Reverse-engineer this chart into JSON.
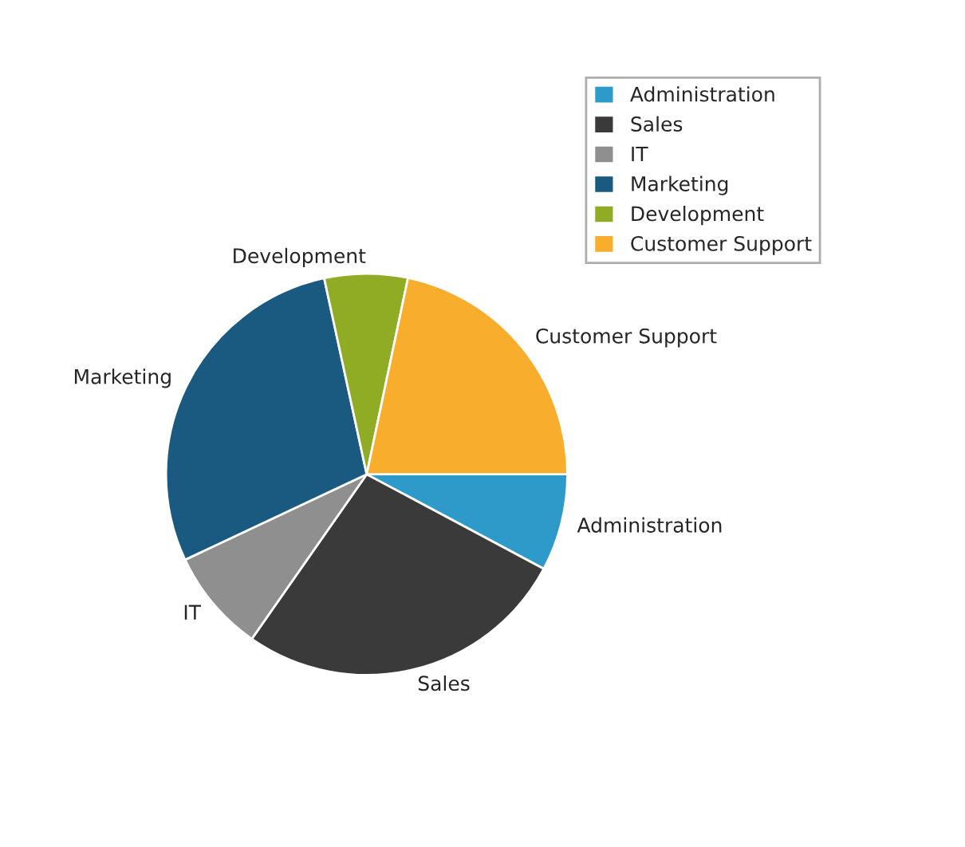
{
  "chart_data": {
    "type": "pie",
    "categories": [
      "Administration",
      "Sales",
      "IT",
      "Marketing",
      "Development",
      "Customer Support"
    ],
    "values": [
      7.8,
      26.9,
      8.3,
      28.6,
      6.7,
      21.7
    ],
    "colors": [
      "#2e9ac9",
      "#3a3a3a",
      "#8f8f8f",
      "#1a5a80",
      "#8fac24",
      "#f9ad2c"
    ],
    "legend": "top right"
  }
}
